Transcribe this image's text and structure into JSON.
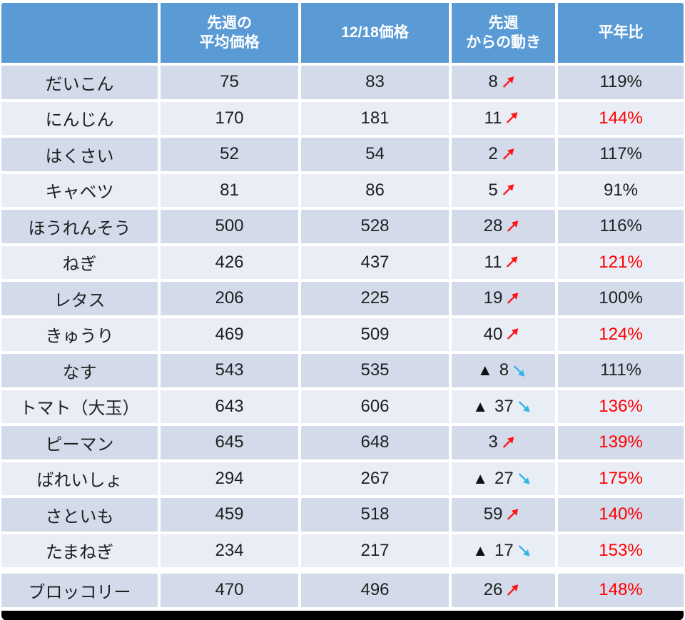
{
  "chart_data": {
    "type": "table",
    "columns": [
      "",
      "先週の\n平均価格",
      "12/18価格",
      "先週\nからの動き",
      "平年比"
    ],
    "rows": [
      {
        "name": "だいこん",
        "last_week": "75",
        "price": "83",
        "change": "8",
        "dir": "up",
        "ratio": "119%",
        "ratio_red": false
      },
      {
        "name": "にんじん",
        "last_week": "170",
        "price": "181",
        "change": "11",
        "dir": "up",
        "ratio": "144%",
        "ratio_red": true
      },
      {
        "name": "はくさい",
        "last_week": "52",
        "price": "54",
        "change": "2",
        "dir": "up",
        "ratio": "117%",
        "ratio_red": false
      },
      {
        "name": "キャベツ",
        "last_week": "81",
        "price": "86",
        "change": "5",
        "dir": "up",
        "ratio": "91%",
        "ratio_red": false
      },
      {
        "name": "ほうれんそう",
        "last_week": "500",
        "price": "528",
        "change": "28",
        "dir": "up",
        "ratio": "116%",
        "ratio_red": false
      },
      {
        "name": "ねぎ",
        "last_week": "426",
        "price": "437",
        "change": "11",
        "dir": "up",
        "ratio": "121%",
        "ratio_red": true
      },
      {
        "name": "レタス",
        "last_week": "206",
        "price": "225",
        "change": "19",
        "dir": "up",
        "ratio": "100%",
        "ratio_red": false
      },
      {
        "name": "きゅうり",
        "last_week": "469",
        "price": "509",
        "change": "40",
        "dir": "up",
        "ratio": "124%",
        "ratio_red": true
      },
      {
        "name": "なす",
        "last_week": "543",
        "price": "535",
        "change": "8",
        "dir": "down",
        "ratio": "111%",
        "ratio_red": false
      },
      {
        "name": "トマト（大玉）",
        "last_week": "643",
        "price": "606",
        "change": "37",
        "dir": "down",
        "ratio": "136%",
        "ratio_red": true
      },
      {
        "name": "ピーマン",
        "last_week": "645",
        "price": "648",
        "change": "3",
        "dir": "up",
        "ratio": "139%",
        "ratio_red": true
      },
      {
        "name": "ばれいしょ",
        "last_week": "294",
        "price": "267",
        "change": "27",
        "dir": "down",
        "ratio": "175%",
        "ratio_red": true
      },
      {
        "name": "さといも",
        "last_week": "459",
        "price": "518",
        "change": "59",
        "dir": "up",
        "ratio": "140%",
        "ratio_red": true
      },
      {
        "name": "たまねぎ",
        "last_week": "234",
        "price": "217",
        "change": "17",
        "dir": "down",
        "ratio": "153%",
        "ratio_red": true
      },
      {
        "name": "ブロッコリー",
        "last_week": "470",
        "price": "496",
        "change": "26",
        "dir": "up",
        "ratio": "148%",
        "ratio_red": true
      }
    ]
  },
  "icons": {
    "decrease_marker": "▲",
    "up_arrow": "up-right-trend-arrow",
    "down_arrow": "down-right-trend-arrow"
  },
  "colors": {
    "header_bg": "#5B9BD5",
    "band_dark": "#D3DBEB",
    "band_light": "#E9EDF6",
    "up_arrow": "#FF1414",
    "down_arrow": "#33B3E6",
    "red_text": "#FF0000"
  }
}
